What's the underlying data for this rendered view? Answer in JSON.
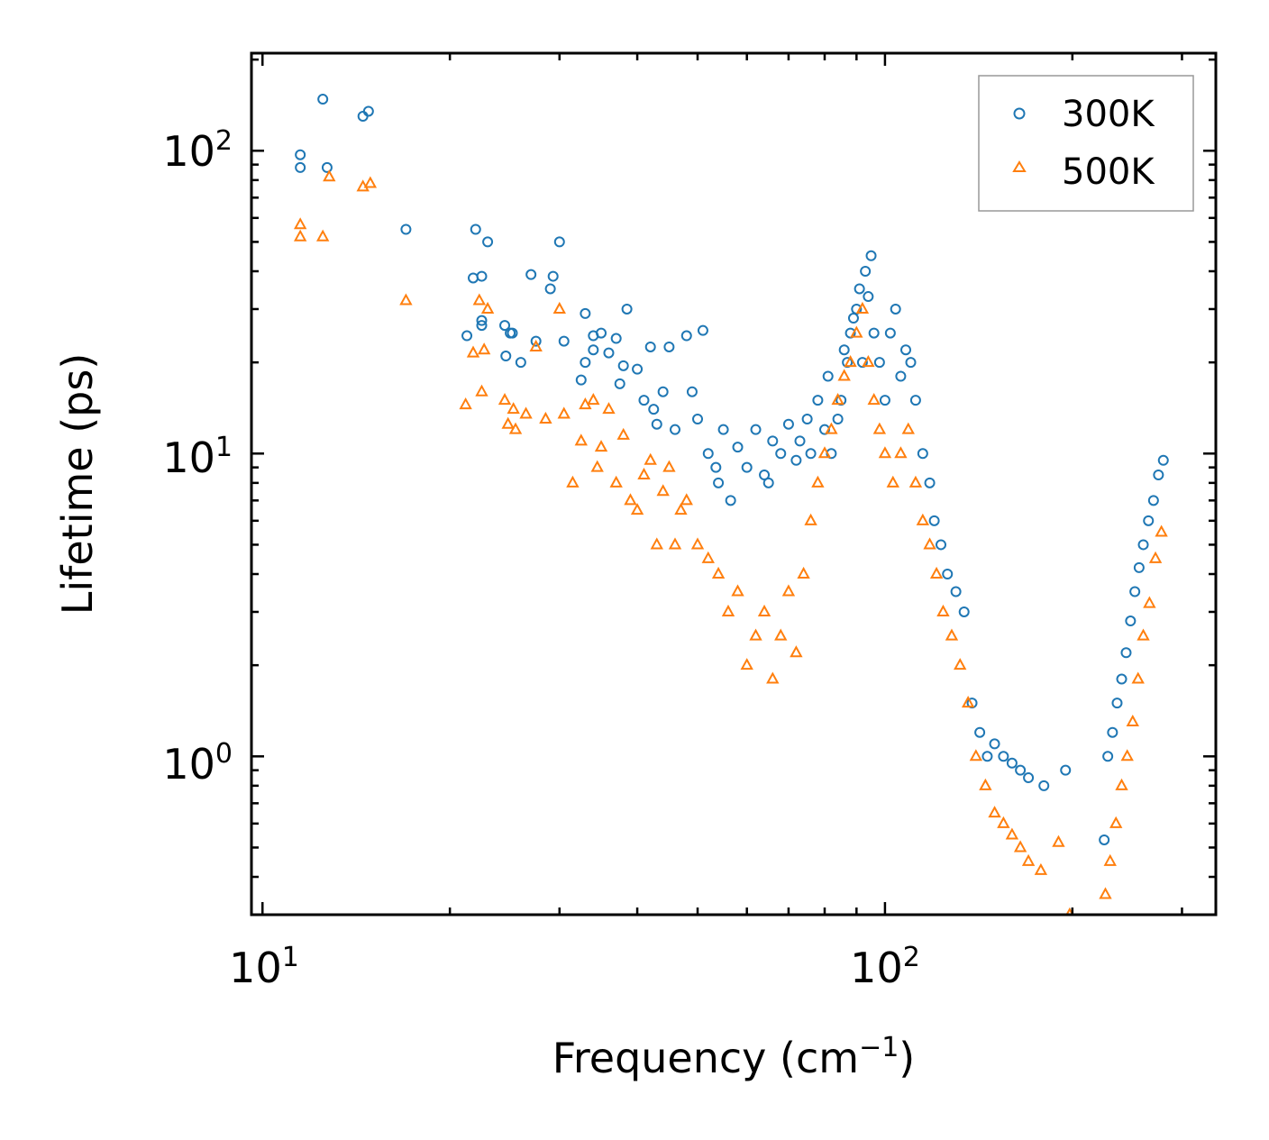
{
  "chart_data": {
    "type": "scatter",
    "title": "",
    "xlabel": "Frequency",
    "xlabel_unit": "(cm",
    "xlabel_unit_exp": "−1",
    "xlabel_unit_close": ")",
    "ylabel": "Lifetime (ps)",
    "xscale": "log",
    "yscale": "log",
    "xlim": [
      9.6,
      340
    ],
    "ylim": [
      0.3,
      210
    ],
    "x_ticks": [
      {
        "base": "10",
        "exp": "1"
      },
      {
        "base": "10",
        "exp": "2"
      }
    ],
    "y_ticks": [
      {
        "base": "10",
        "exp": "0"
      },
      {
        "base": "10",
        "exp": "1"
      },
      {
        "base": "10",
        "exp": "2"
      }
    ],
    "legend_position": "top-right",
    "series": [
      {
        "name": "300K",
        "color": "#1f77b4",
        "marker": "circle",
        "x": [
          11.5,
          11.5,
          12.5,
          12.7,
          14.5,
          14.8,
          17.0,
          21.3,
          21.8,
          22.0,
          22.5,
          22.5,
          22.5,
          23.0,
          24.5,
          24.6,
          25.0,
          25.2,
          26.0,
          27.0,
          27.5,
          29.0,
          29.3,
          30.0,
          30.5,
          32.5,
          33.0,
          33.0,
          34.0,
          34.0,
          35.0,
          36.0,
          37.0,
          37.5,
          38.0,
          38.5,
          40.0,
          41.0,
          42.0,
          42.5,
          43.0,
          44.0,
          45.0,
          46.0,
          48.0,
          49.0,
          50.0,
          51.0,
          52.0,
          53.5,
          54.0,
          55.0,
          56.5,
          58.0,
          60.0,
          62.0,
          64.0,
          65.0,
          66.0,
          68.0,
          70.0,
          72.0,
          73.0,
          75.0,
          76.0,
          78.0,
          80.0,
          81.0,
          82.0,
          84.0,
          85.0,
          86.0,
          87.0,
          88.0,
          89.0,
          90.0,
          91.0,
          92.0,
          93.0,
          94.0,
          95.0,
          96.0,
          98.0,
          100.0,
          102.0,
          104.0,
          106.0,
          108.0,
          110.0,
          112.0,
          115.0,
          118.0,
          120.0,
          123.0,
          126.0,
          130.0,
          134.0,
          138.0,
          142.0,
          146.0,
          150.0,
          155.0,
          160.0,
          165.0,
          170.0,
          180.0,
          195.0,
          225.0,
          228.0,
          232.0,
          236.0,
          240.0,
          244.0,
          248.0,
          252.0,
          256.0,
          260.0,
          265.0,
          270.0,
          275.0,
          280.0
        ],
        "y": [
          97,
          88,
          148,
          88,
          130,
          135,
          55,
          24.5,
          38,
          55,
          38.5,
          27.5,
          26.5,
          50,
          26.5,
          21,
          25,
          25,
          20,
          39,
          23.5,
          35,
          38.5,
          50,
          23.5,
          17.5,
          20,
          29,
          24.5,
          22,
          25,
          21.5,
          24,
          17,
          19.5,
          30,
          19,
          15,
          22.5,
          14,
          12.5,
          16,
          22.5,
          12,
          24.5,
          16,
          13,
          25.5,
          10,
          9,
          8,
          12,
          7,
          10.5,
          9,
          12,
          8.5,
          8,
          11,
          10,
          12.5,
          9.5,
          11,
          13,
          10,
          15,
          12,
          18,
          10,
          13,
          15,
          22,
          20,
          25,
          28,
          30,
          35,
          20,
          40,
          33,
          45,
          25,
          20,
          15,
          25,
          30,
          18,
          22,
          20,
          15,
          10,
          8,
          6,
          5,
          4,
          3.5,
          3,
          1.5,
          1.2,
          1.0,
          1.1,
          1.0,
          0.95,
          0.9,
          0.85,
          0.8,
          0.9,
          0.53,
          1.0,
          1.2,
          1.5,
          1.8,
          2.2,
          2.8,
          3.5,
          4.2,
          5,
          6,
          7,
          8.5,
          9.5
        ]
      },
      {
        "name": "500K",
        "color": "#ff7f0e",
        "marker": "triangle",
        "x": [
          11.5,
          11.5,
          12.5,
          12.8,
          14.5,
          14.9,
          17.0,
          21.2,
          21.8,
          22.3,
          22.5,
          22.7,
          23.0,
          24.5,
          24.8,
          25.3,
          25.5,
          26.5,
          27.5,
          28.5,
          30.0,
          30.5,
          31.5,
          32.5,
          33.0,
          34.0,
          34.5,
          35.0,
          36.0,
          37.0,
          38.0,
          39.0,
          40.0,
          41.0,
          42.0,
          43.0,
          44.0,
          45.0,
          46.0,
          47.0,
          48.0,
          50.0,
          52.0,
          54.0,
          56.0,
          58.0,
          60.0,
          62.0,
          64.0,
          66.0,
          68.0,
          70.0,
          72.0,
          74.0,
          76.0,
          78.0,
          80.0,
          82.0,
          84.0,
          86.0,
          88.0,
          90.0,
          92.0,
          94.0,
          96.0,
          98.0,
          100.0,
          103.0,
          106.0,
          109.0,
          112.0,
          115.0,
          118.0,
          121.0,
          124.0,
          128.0,
          132.0,
          136.0,
          140.0,
          145.0,
          150.0,
          155.0,
          160.0,
          165.0,
          170.0,
          178.0,
          190.0,
          198.0,
          226.0,
          230.0,
          235.0,
          240.0,
          245.0,
          250.0,
          255.0,
          260.0,
          266.0,
          272.0,
          278.0
        ],
        "y": [
          57,
          52,
          52,
          82,
          76,
          78,
          32,
          14.5,
          21.5,
          32,
          16,
          22,
          30,
          15,
          12.5,
          14,
          12,
          13.5,
          22.5,
          13,
          30,
          13.5,
          8,
          11,
          14.5,
          15,
          9,
          10.5,
          14,
          8,
          11.5,
          7,
          6.5,
          8.5,
          9.5,
          5,
          7.5,
          9,
          5,
          6.5,
          7,
          5,
          4.5,
          4,
          3,
          3.5,
          2,
          2.5,
          3,
          1.8,
          2.5,
          3.5,
          2.2,
          4,
          6,
          8,
          10,
          12,
          15,
          18,
          20,
          25,
          30,
          20,
          15,
          12,
          10,
          8,
          10,
          12,
          8,
          6,
          5,
          4,
          3,
          2.5,
          2,
          1.5,
          1.0,
          0.8,
          0.65,
          0.6,
          0.55,
          0.5,
          0.45,
          0.42,
          0.52,
          0.3,
          0.35,
          0.45,
          0.6,
          0.8,
          1.0,
          1.3,
          1.8,
          2.5,
          3.2,
          4.5,
          5.5
        ]
      }
    ]
  }
}
